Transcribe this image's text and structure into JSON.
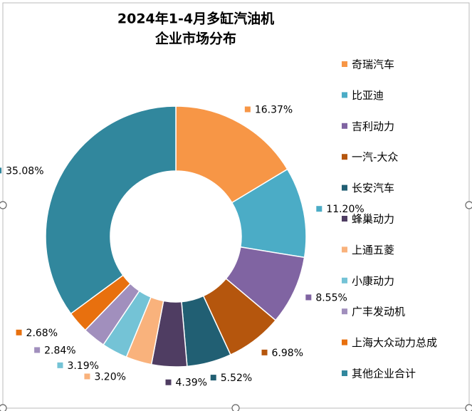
{
  "chart_data": {
    "type": "donut",
    "title": "2024年1-4月多缸汽油机",
    "subtitle": "企业市场分布",
    "categories": [
      "奇瑞汽车",
      "比亚迪",
      "吉利动力",
      "一汽-大众",
      "长安汽车",
      "蜂巢动力",
      "上通五菱",
      "小康动力",
      "广丰发动机",
      "上海大众动力总成",
      "其他企业合计"
    ],
    "values": [
      16.37,
      11.2,
      8.55,
      6.98,
      5.52,
      4.39,
      3.2,
      3.19,
      2.84,
      2.68,
      35.08
    ],
    "value_labels": [
      "16.37%",
      "11.20%",
      "8.55%",
      "6.98%",
      "5.52%",
      "4.39%",
      "3.20%",
      "3.19%",
      "2.84%",
      "2.68%",
      "35.08%"
    ],
    "colors": [
      "#f79646",
      "#4bacc6",
      "#8064a2",
      "#b5560d",
      "#215f73",
      "#4f3d62",
      "#f9b27c",
      "#74c3d6",
      "#a18fbd",
      "#e8700e",
      "#31879d"
    ],
    "legend": "right"
  }
}
